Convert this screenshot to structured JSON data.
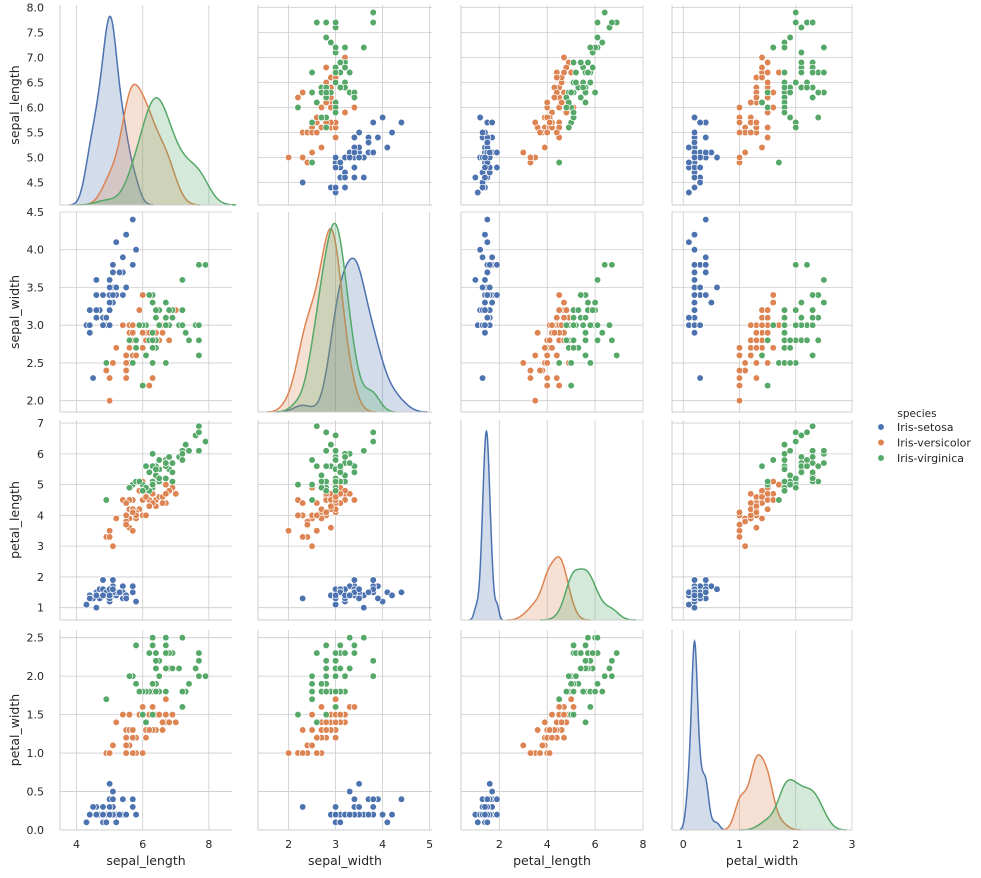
{
  "chart_data": {
    "type": "scatter",
    "kind": "pairplot",
    "variables": [
      "sepal_length",
      "sepal_width",
      "petal_length",
      "petal_width"
    ],
    "axis_labels": {
      "sepal_length": "sepal_length",
      "sepal_width": "sepal_width",
      "petal_length": "petal_length",
      "petal_width": "petal_width"
    },
    "axes": {
      "sepal_length": {
        "lim": [
          3.5,
          8.7
        ],
        "ticks": [
          4,
          6,
          8
        ],
        "row_lim": [
          4.05,
          8.05
        ],
        "row_ticks": [
          4.5,
          5.0,
          5.5,
          6.0,
          6.5,
          7.0,
          7.5,
          8.0
        ],
        "row_tick_labels": [
          "4.5",
          "5.0",
          "5.5",
          "6.0",
          "6.5",
          "7.0",
          "7.5",
          "8.0"
        ]
      },
      "sepal_width": {
        "lim": [
          1.35,
          5.05
        ],
        "ticks": [
          2,
          3,
          4,
          5
        ],
        "row_lim": [
          1.85,
          4.5
        ],
        "row_ticks": [
          2.0,
          2.5,
          3.0,
          3.5,
          4.0,
          4.5
        ],
        "row_tick_labels": [
          "2.0",
          "2.5",
          "3.0",
          "3.5",
          "4.0",
          "4.5"
        ]
      },
      "petal_length": {
        "lim": [
          0.4,
          8.0
        ],
        "ticks": [
          2,
          4,
          6,
          8
        ],
        "row_lim": [
          0.6,
          7.1
        ],
        "row_ticks": [
          1,
          2,
          3,
          4,
          5,
          6,
          7
        ],
        "row_tick_labels": [
          "1",
          "2",
          "3",
          "4",
          "5",
          "6",
          "7"
        ]
      },
      "petal_width": {
        "lim": [
          -0.2,
          3.0
        ],
        "ticks": [
          0,
          1,
          2,
          3
        ],
        "row_lim": [
          0,
          2.6
        ],
        "row_ticks": [
          0.0,
          0.5,
          1.0,
          1.5,
          2.0,
          2.5
        ],
        "row_tick_labels": [
          "0.0",
          "0.5",
          "1.0",
          "1.5",
          "2.0",
          "2.5"
        ]
      }
    },
    "legend": {
      "title": "species",
      "placement": "right",
      "entries": [
        {
          "name": "Iris-setosa",
          "color": "#4c72b0"
        },
        {
          "name": "Iris-versicolor",
          "color": "#dd8452"
        },
        {
          "name": "Iris-virginica",
          "color": "#55a868"
        }
      ]
    },
    "grid": true,
    "diagonal": "kde",
    "series": [
      {
        "name": "Iris-setosa",
        "color": "#4c72b0",
        "points": [
          [
            5.1,
            3.5,
            1.4,
            0.2
          ],
          [
            4.9,
            3.0,
            1.4,
            0.2
          ],
          [
            4.7,
            3.2,
            1.3,
            0.2
          ],
          [
            4.6,
            3.1,
            1.5,
            0.2
          ],
          [
            5.0,
            3.6,
            1.4,
            0.2
          ],
          [
            5.4,
            3.9,
            1.7,
            0.4
          ],
          [
            4.6,
            3.4,
            1.4,
            0.3
          ],
          [
            5.0,
            3.4,
            1.5,
            0.2
          ],
          [
            4.4,
            2.9,
            1.4,
            0.2
          ],
          [
            4.9,
            3.1,
            1.5,
            0.1
          ],
          [
            5.4,
            3.7,
            1.5,
            0.2
          ],
          [
            4.8,
            3.4,
            1.6,
            0.2
          ],
          [
            4.8,
            3.0,
            1.4,
            0.1
          ],
          [
            4.3,
            3.0,
            1.1,
            0.1
          ],
          [
            5.8,
            4.0,
            1.2,
            0.2
          ],
          [
            5.7,
            4.4,
            1.5,
            0.4
          ],
          [
            5.4,
            3.9,
            1.3,
            0.4
          ],
          [
            5.1,
            3.5,
            1.4,
            0.3
          ],
          [
            5.7,
            3.8,
            1.7,
            0.3
          ],
          [
            5.1,
            3.8,
            1.5,
            0.3
          ],
          [
            5.4,
            3.4,
            1.7,
            0.2
          ],
          [
            5.1,
            3.7,
            1.5,
            0.4
          ],
          [
            4.6,
            3.6,
            1.0,
            0.2
          ],
          [
            5.1,
            3.3,
            1.7,
            0.5
          ],
          [
            4.8,
            3.4,
            1.9,
            0.2
          ],
          [
            5.0,
            3.0,
            1.6,
            0.2
          ],
          [
            5.0,
            3.4,
            1.6,
            0.4
          ],
          [
            5.2,
            3.5,
            1.5,
            0.2
          ],
          [
            5.2,
            3.4,
            1.4,
            0.2
          ],
          [
            4.7,
            3.2,
            1.6,
            0.2
          ],
          [
            4.8,
            3.1,
            1.6,
            0.2
          ],
          [
            5.4,
            3.4,
            1.5,
            0.4
          ],
          [
            5.2,
            4.1,
            1.5,
            0.1
          ],
          [
            5.5,
            4.2,
            1.4,
            0.2
          ],
          [
            4.9,
            3.1,
            1.5,
            0.1
          ],
          [
            5.0,
            3.2,
            1.2,
            0.2
          ],
          [
            5.5,
            3.5,
            1.3,
            0.2
          ],
          [
            4.9,
            3.1,
            1.5,
            0.1
          ],
          [
            4.4,
            3.0,
            1.3,
            0.2
          ],
          [
            5.1,
            3.4,
            1.5,
            0.2
          ],
          [
            5.0,
            3.5,
            1.3,
            0.3
          ],
          [
            4.5,
            2.3,
            1.3,
            0.3
          ],
          [
            4.4,
            3.2,
            1.3,
            0.2
          ],
          [
            5.0,
            3.5,
            1.6,
            0.6
          ],
          [
            5.1,
            3.8,
            1.9,
            0.4
          ],
          [
            4.8,
            3.0,
            1.4,
            0.3
          ],
          [
            5.1,
            3.8,
            1.6,
            0.2
          ],
          [
            4.6,
            3.2,
            1.4,
            0.2
          ],
          [
            5.3,
            3.7,
            1.5,
            0.2
          ],
          [
            5.0,
            3.3,
            1.4,
            0.2
          ]
        ]
      },
      {
        "name": "Iris-versicolor",
        "color": "#dd8452",
        "points": [
          [
            7.0,
            3.2,
            4.7,
            1.4
          ],
          [
            6.4,
            3.2,
            4.5,
            1.5
          ],
          [
            6.9,
            3.1,
            4.9,
            1.5
          ],
          [
            5.5,
            2.3,
            4.0,
            1.3
          ],
          [
            6.5,
            2.8,
            4.6,
            1.5
          ],
          [
            5.7,
            2.8,
            4.5,
            1.3
          ],
          [
            6.3,
            3.3,
            4.7,
            1.6
          ],
          [
            4.9,
            2.4,
            3.3,
            1.0
          ],
          [
            6.6,
            2.9,
            4.6,
            1.3
          ],
          [
            5.2,
            2.7,
            3.9,
            1.4
          ],
          [
            5.0,
            2.0,
            3.5,
            1.0
          ],
          [
            5.9,
            3.0,
            4.2,
            1.5
          ],
          [
            6.0,
            2.2,
            4.0,
            1.0
          ],
          [
            6.1,
            2.9,
            4.7,
            1.4
          ],
          [
            5.6,
            2.9,
            3.6,
            1.3
          ],
          [
            6.7,
            3.1,
            4.4,
            1.4
          ],
          [
            5.6,
            3.0,
            4.5,
            1.5
          ],
          [
            5.8,
            2.7,
            4.1,
            1.0
          ],
          [
            6.2,
            2.2,
            4.5,
            1.5
          ],
          [
            5.6,
            2.5,
            3.9,
            1.1
          ],
          [
            5.9,
            3.2,
            4.8,
            1.8
          ],
          [
            6.1,
            2.8,
            4.0,
            1.3
          ],
          [
            6.3,
            2.5,
            4.9,
            1.5
          ],
          [
            6.1,
            2.8,
            4.7,
            1.2
          ],
          [
            6.4,
            2.9,
            4.3,
            1.3
          ],
          [
            6.6,
            3.0,
            4.4,
            1.4
          ],
          [
            6.8,
            2.8,
            4.8,
            1.4
          ],
          [
            6.7,
            3.0,
            5.0,
            1.7
          ],
          [
            6.0,
            2.9,
            4.5,
            1.5
          ],
          [
            5.7,
            2.6,
            3.5,
            1.0
          ],
          [
            5.5,
            2.4,
            3.8,
            1.1
          ],
          [
            5.5,
            2.4,
            3.7,
            1.0
          ],
          [
            5.8,
            2.7,
            3.9,
            1.2
          ],
          [
            6.0,
            2.7,
            5.1,
            1.6
          ],
          [
            5.4,
            3.0,
            4.5,
            1.5
          ],
          [
            6.0,
            3.4,
            4.5,
            1.6
          ],
          [
            6.7,
            3.1,
            4.7,
            1.5
          ],
          [
            6.3,
            2.3,
            4.4,
            1.3
          ],
          [
            5.6,
            3.0,
            4.1,
            1.3
          ],
          [
            5.5,
            2.5,
            4.0,
            1.3
          ],
          [
            5.5,
            2.6,
            4.4,
            1.2
          ],
          [
            6.1,
            3.0,
            4.6,
            1.4
          ],
          [
            5.8,
            2.6,
            4.0,
            1.2
          ],
          [
            5.0,
            2.3,
            3.3,
            1.0
          ],
          [
            5.6,
            2.7,
            4.2,
            1.3
          ],
          [
            5.7,
            3.0,
            4.2,
            1.2
          ],
          [
            5.7,
            2.9,
            4.2,
            1.3
          ],
          [
            6.2,
            2.9,
            4.3,
            1.3
          ],
          [
            5.1,
            2.5,
            3.0,
            1.1
          ],
          [
            5.7,
            2.8,
            4.1,
            1.3
          ]
        ]
      },
      {
        "name": "Iris-virginica",
        "color": "#55a868",
        "points": [
          [
            6.3,
            3.3,
            6.0,
            2.5
          ],
          [
            5.8,
            2.7,
            5.1,
            1.9
          ],
          [
            7.1,
            3.0,
            5.9,
            2.1
          ],
          [
            6.3,
            2.9,
            5.6,
            1.8
          ],
          [
            6.5,
            3.0,
            5.8,
            2.2
          ],
          [
            7.6,
            3.0,
            6.6,
            2.1
          ],
          [
            4.9,
            2.5,
            4.5,
            1.7
          ],
          [
            7.3,
            2.9,
            6.3,
            1.8
          ],
          [
            6.7,
            2.5,
            5.8,
            1.8
          ],
          [
            7.2,
            3.6,
            6.1,
            2.5
          ],
          [
            6.5,
            3.2,
            5.1,
            2.0
          ],
          [
            6.4,
            2.7,
            5.3,
            1.9
          ],
          [
            6.8,
            3.0,
            5.5,
            2.1
          ],
          [
            5.7,
            2.5,
            5.0,
            2.0
          ],
          [
            5.8,
            2.8,
            5.1,
            2.4
          ],
          [
            6.4,
            3.2,
            5.3,
            2.3
          ],
          [
            6.5,
            3.0,
            5.5,
            1.8
          ],
          [
            7.7,
            3.8,
            6.7,
            2.2
          ],
          [
            7.7,
            2.6,
            6.9,
            2.3
          ],
          [
            6.0,
            2.2,
            5.0,
            1.5
          ],
          [
            6.9,
            3.2,
            5.7,
            2.3
          ],
          [
            5.6,
            2.8,
            4.9,
            2.0
          ],
          [
            7.7,
            2.8,
            6.7,
            2.0
          ],
          [
            6.3,
            2.7,
            4.9,
            1.8
          ],
          [
            6.7,
            3.3,
            5.7,
            2.1
          ],
          [
            7.2,
            3.2,
            6.0,
            1.8
          ],
          [
            6.2,
            2.8,
            4.8,
            1.8
          ],
          [
            6.1,
            3.0,
            4.9,
            1.8
          ],
          [
            6.4,
            2.8,
            5.6,
            2.1
          ],
          [
            7.2,
            3.0,
            5.8,
            1.6
          ],
          [
            7.4,
            2.8,
            6.1,
            1.9
          ],
          [
            7.9,
            3.8,
            6.4,
            2.0
          ],
          [
            6.4,
            2.8,
            5.6,
            2.2
          ],
          [
            6.3,
            2.8,
            5.1,
            1.5
          ],
          [
            6.1,
            2.6,
            5.6,
            1.4
          ],
          [
            7.7,
            3.0,
            6.1,
            2.3
          ],
          [
            6.3,
            3.4,
            5.6,
            2.4
          ],
          [
            6.4,
            3.1,
            5.5,
            1.8
          ],
          [
            6.0,
            3.0,
            4.8,
            1.8
          ],
          [
            6.9,
            3.1,
            5.4,
            2.1
          ],
          [
            6.7,
            3.1,
            5.6,
            2.4
          ],
          [
            6.9,
            3.1,
            5.1,
            2.3
          ],
          [
            5.8,
            2.7,
            5.1,
            1.9
          ],
          [
            6.8,
            3.2,
            5.9,
            2.3
          ],
          [
            6.7,
            3.3,
            5.7,
            2.5
          ],
          [
            6.7,
            3.0,
            5.2,
            2.3
          ],
          [
            6.3,
            2.5,
            5.0,
            1.9
          ],
          [
            6.5,
            3.0,
            5.2,
            2.0
          ],
          [
            6.2,
            3.4,
            5.4,
            2.3
          ],
          [
            5.9,
            3.0,
            5.1,
            1.8
          ]
        ]
      }
    ]
  }
}
